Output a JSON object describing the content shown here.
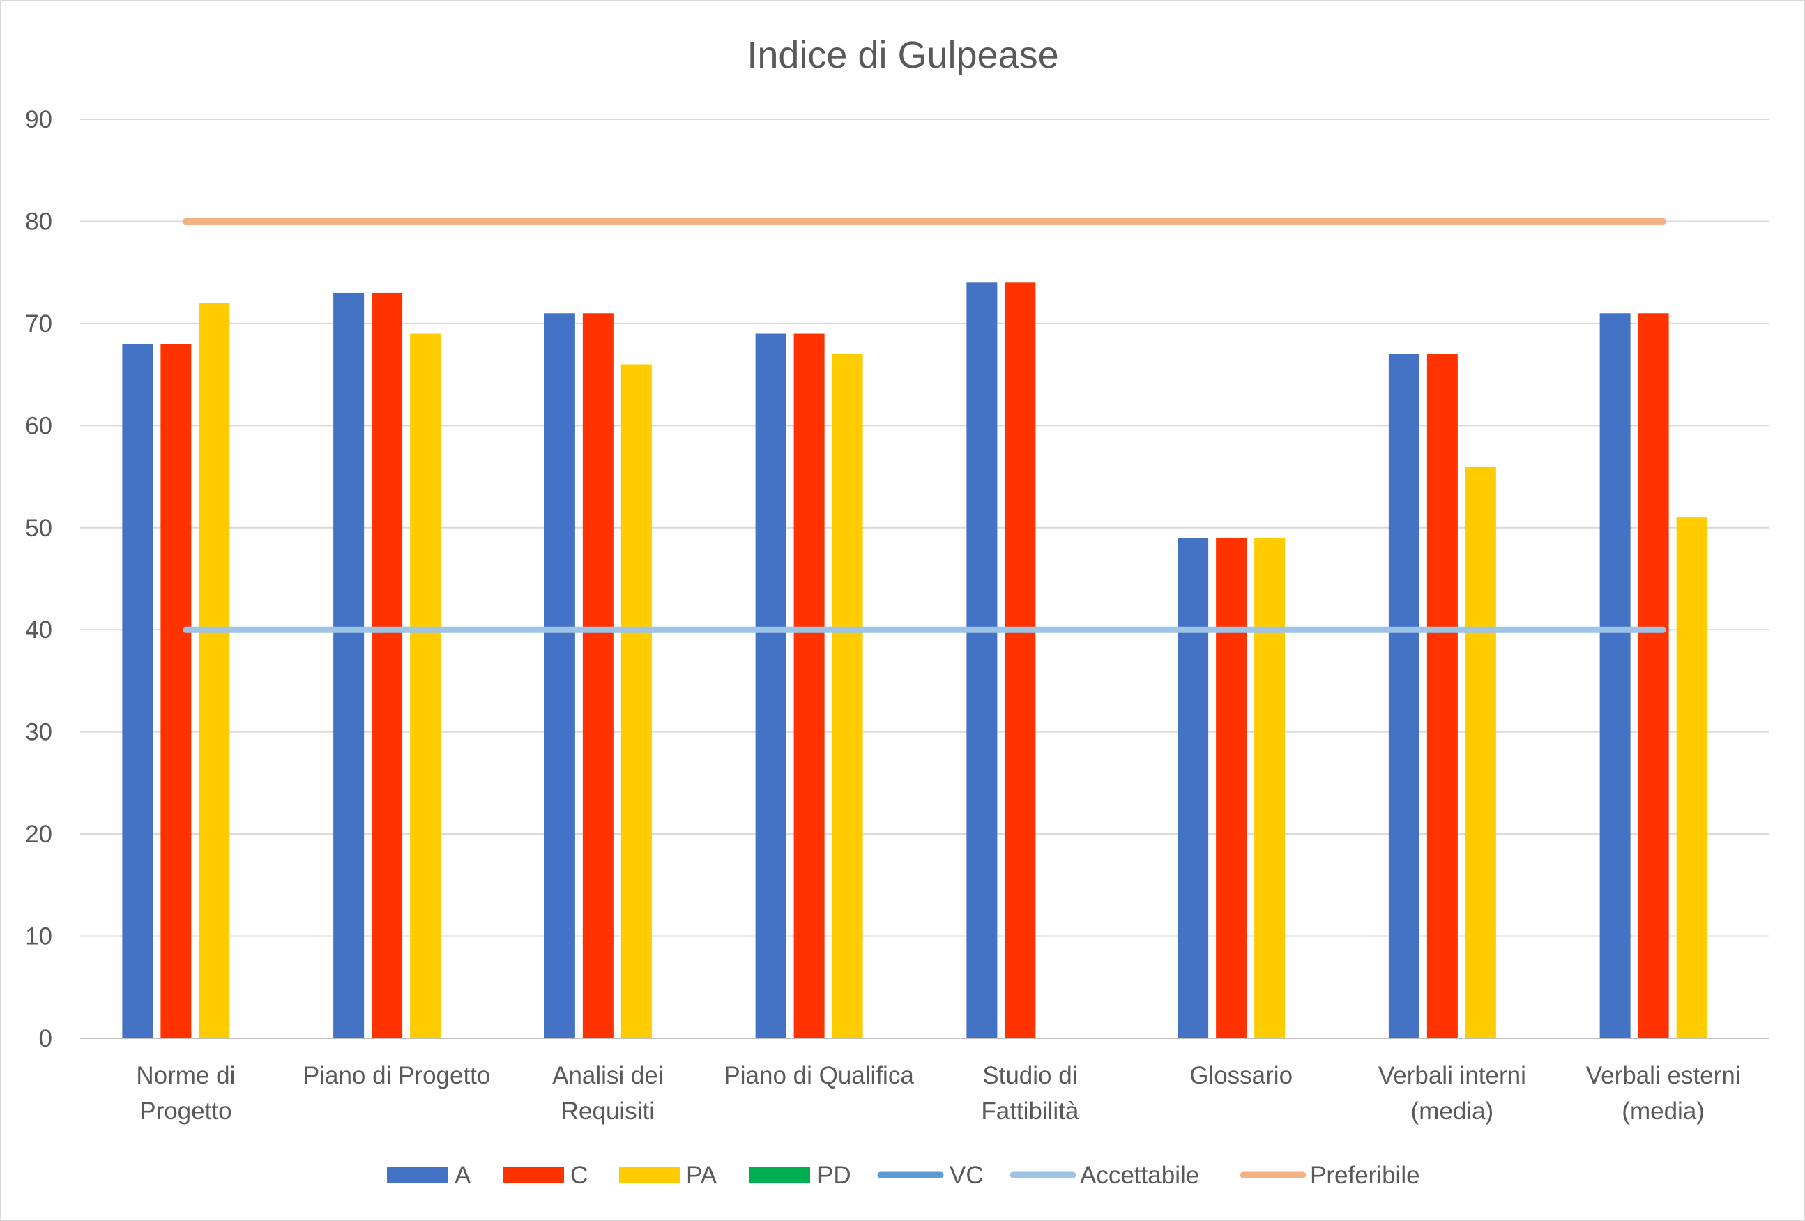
{
  "chart_data": {
    "type": "bar",
    "title": "Indice di Gulpease",
    "xlabel": "",
    "ylabel": "",
    "ylim": [
      0,
      90
    ],
    "yticks": [
      0,
      10,
      20,
      30,
      40,
      50,
      60,
      70,
      80,
      90
    ],
    "grid": true,
    "legend_position": "bottom",
    "categories": [
      [
        "Norme di",
        "Progetto"
      ],
      [
        "Piano di Progetto"
      ],
      [
        "Analisi dei",
        "Requisiti"
      ],
      [
        "Piano di Qualifica"
      ],
      [
        "Studio di",
        "Fattibilità"
      ],
      [
        "Glossario"
      ],
      [
        "Verbali interni",
        "(media)"
      ],
      [
        "Verbali esterni",
        "(media)"
      ]
    ],
    "series": [
      {
        "name": "A",
        "kind": "bar",
        "color": "#4472c4",
        "values": [
          68,
          73,
          71,
          69,
          74,
          49,
          67,
          71
        ]
      },
      {
        "name": "C",
        "kind": "bar",
        "color": "#ff3300",
        "values": [
          68,
          73,
          71,
          69,
          74,
          49,
          67,
          71
        ]
      },
      {
        "name": "PA",
        "kind": "bar",
        "color": "#ffcc00",
        "values": [
          72,
          69,
          66,
          67,
          null,
          49,
          56,
          51
        ]
      },
      {
        "name": "PD",
        "kind": "bar",
        "color": "#00b050",
        "values": [
          null,
          null,
          null,
          null,
          null,
          null,
          null,
          null
        ]
      },
      {
        "name": "VC",
        "kind": "line",
        "color": "#5b9bd5",
        "values": [
          null,
          null,
          null,
          null,
          null,
          null,
          null,
          null
        ]
      },
      {
        "name": "Accettabile",
        "kind": "line",
        "color": "#9dc3e6",
        "values": [
          40,
          40,
          40,
          40,
          40,
          40,
          40,
          40
        ]
      },
      {
        "name": "Preferibile",
        "kind": "line",
        "color": "#f4b183",
        "values": [
          80,
          80,
          80,
          80,
          80,
          80,
          80,
          80
        ]
      }
    ]
  }
}
